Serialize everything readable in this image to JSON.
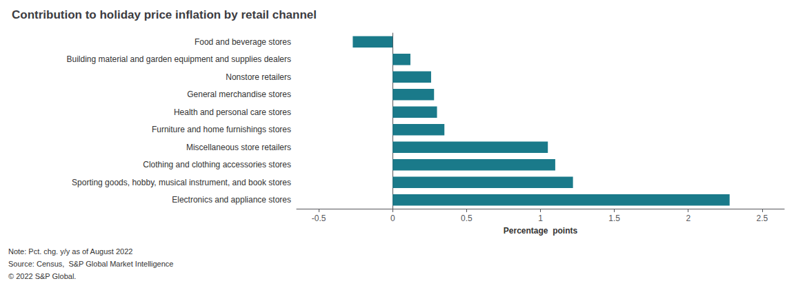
{
  "chart_data": {
    "type": "bar",
    "orientation": "horizontal",
    "title": "Contribution to holiday price inflation by retail channel",
    "categories": [
      "Food and beverage stores",
      "Building material and garden equipment and supplies dealers",
      "Nonstore retailers",
      "General merchandise stores",
      "Health and personal care stores",
      "Furniture and home furnishings stores",
      "Miscellaneous store retailers",
      "Clothing and clothing accessories stores",
      "Sporting goods, hobby, musical instrument, and book stores",
      "Electronics and appliance stores"
    ],
    "values": [
      -0.27,
      0.12,
      0.26,
      0.28,
      0.3,
      0.35,
      1.05,
      1.1,
      1.22,
      2.28
    ],
    "color": "#1a7a8a",
    "xlabel": "Percentage  points",
    "xlim": [
      -0.65,
      2.65
    ],
    "xticks": [
      -0.5,
      0,
      0.5,
      1,
      1.5,
      2,
      2.5
    ],
    "grid": false,
    "annotations": [
      "Note: Pct. chg. y/y as of August 2022",
      "Source: Census,  S&P Global Market Intelligence",
      "© 2022 S&P Global."
    ]
  }
}
